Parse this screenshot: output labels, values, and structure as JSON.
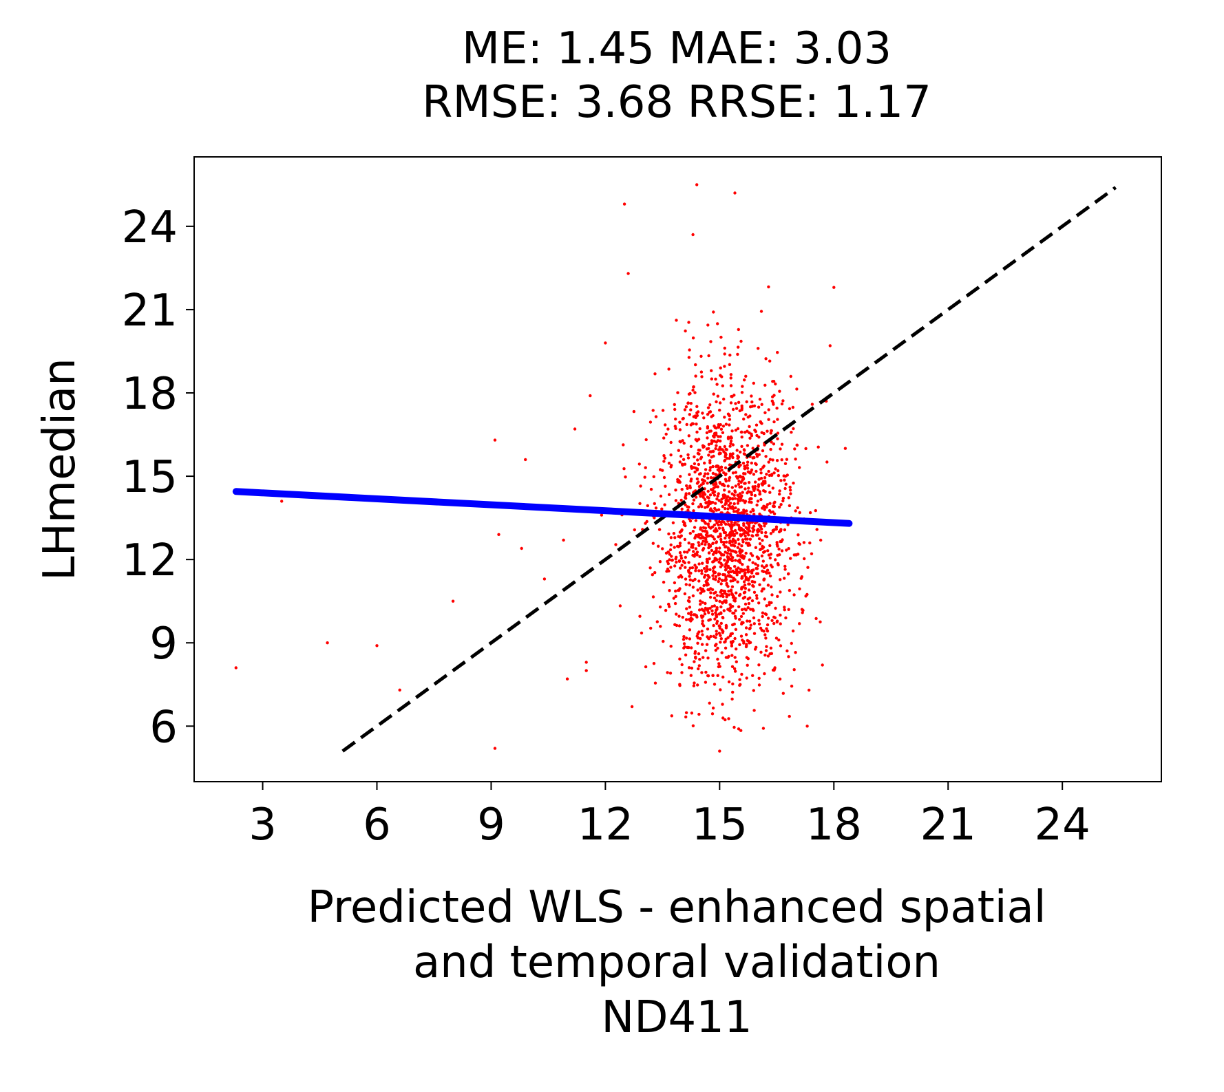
{
  "chart_data": {
    "type": "scatter",
    "title_lines": [
      "ME: 1.45 MAE: 3.03",
      "RMSE: 3.68 RRSE: 1.17"
    ],
    "xlabel_lines": [
      "Predicted WLS - enhanced spatial",
      "and temporal validation",
      "ND411"
    ],
    "ylabel": "LHmedian",
    "xlim": [
      1.2,
      26.6
    ],
    "ylim": [
      4.0,
      26.5
    ],
    "x_ticks": [
      3,
      6,
      9,
      12,
      15,
      18,
      21,
      24
    ],
    "y_ticks": [
      6,
      9,
      12,
      15,
      18,
      21,
      24
    ],
    "grid": false,
    "colors": {
      "points": "#ff0000",
      "fit_line": "#0000ff",
      "identity_line": "#000000"
    },
    "identity_line": {
      "x": [
        5.1,
        25.4
      ],
      "y": [
        5.1,
        25.4
      ],
      "style": "dashed"
    },
    "fit_line": {
      "x": [
        2.3,
        18.4
      ],
      "y": [
        14.45,
        13.3
      ]
    },
    "points_outliers": [
      {
        "x": 2.3,
        "y": 8.1
      },
      {
        "x": 3.5,
        "y": 14.1
      },
      {
        "x": 4.7,
        "y": 9.0
      },
      {
        "x": 6.0,
        "y": 8.9
      },
      {
        "x": 6.6,
        "y": 7.3
      },
      {
        "x": 8.0,
        "y": 10.5
      },
      {
        "x": 9.1,
        "y": 16.3
      },
      {
        "x": 9.2,
        "y": 12.9
      },
      {
        "x": 9.1,
        "y": 5.2
      },
      {
        "x": 9.9,
        "y": 15.6
      },
      {
        "x": 9.8,
        "y": 12.4
      },
      {
        "x": 10.4,
        "y": 11.3
      },
      {
        "x": 10.9,
        "y": 12.7
      },
      {
        "x": 11.0,
        "y": 7.7
      },
      {
        "x": 11.2,
        "y": 16.7
      },
      {
        "x": 11.5,
        "y": 8.3
      },
      {
        "x": 11.5,
        "y": 8.0
      },
      {
        "x": 11.6,
        "y": 17.9
      },
      {
        "x": 11.9,
        "y": 13.6
      },
      {
        "x": 12.0,
        "y": 19.8
      },
      {
        "x": 12.5,
        "y": 24.8
      },
      {
        "x": 12.6,
        "y": 22.3
      },
      {
        "x": 12.7,
        "y": 6.7
      },
      {
        "x": 14.4,
        "y": 25.5
      },
      {
        "x": 15.4,
        "y": 25.2
      },
      {
        "x": 14.3,
        "y": 23.7
      },
      {
        "x": 15.0,
        "y": 5.1
      },
      {
        "x": 15.5,
        "y": 5.9
      },
      {
        "x": 17.3,
        "y": 6.0
      },
      {
        "x": 18.0,
        "y": 21.8
      },
      {
        "x": 18.3,
        "y": 16.0
      },
      {
        "x": 17.9,
        "y": 19.7
      },
      {
        "x": 17.7,
        "y": 8.2
      },
      {
        "x": 17.8,
        "y": 17.7
      }
    ],
    "points_cluster": {
      "n": 1900,
      "x_center": 15.2,
      "x_sd": 0.9,
      "y_center": 12.9,
      "y_sd": 2.7,
      "x_range": [
        12.2,
        18.2
      ],
      "y_range": [
        5.8,
        23.5
      ]
    }
  }
}
